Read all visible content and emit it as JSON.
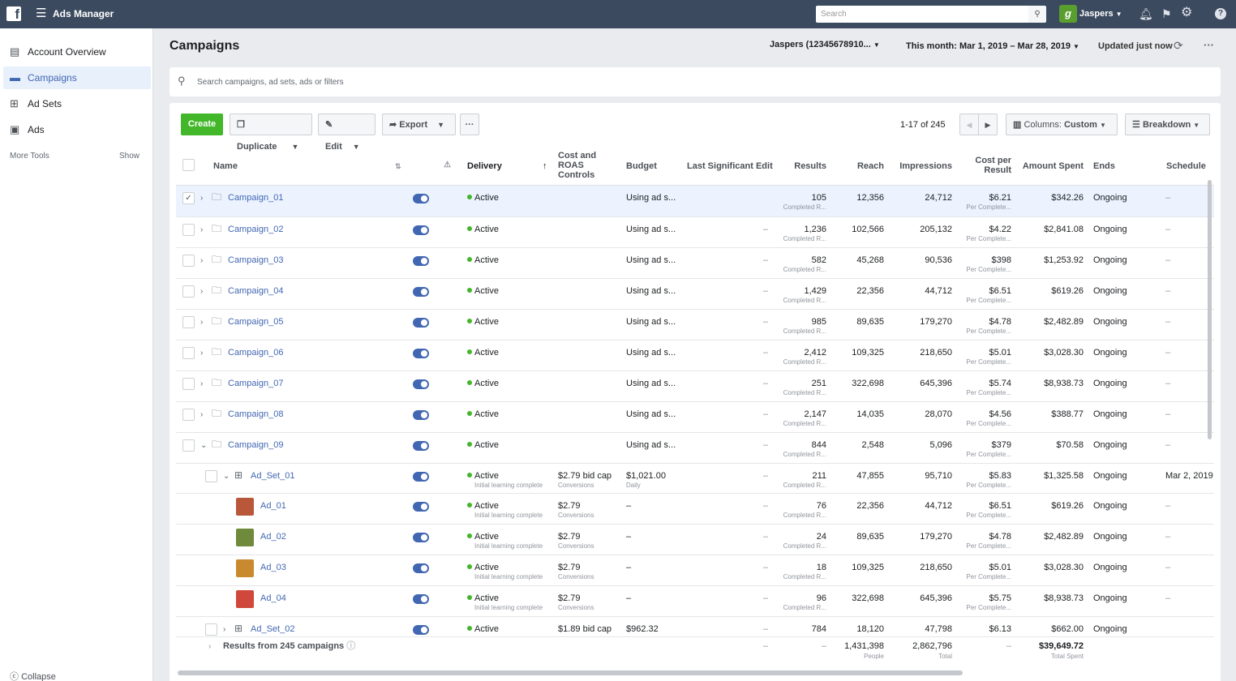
{
  "topbar": {
    "app_name": "Ads Manager",
    "search_placeholder": "Search",
    "user_name": "Jaspers",
    "avatar_letter": "g"
  },
  "sidebar": {
    "items": [
      {
        "label": "Account Overview",
        "icon": "account-overview-icon"
      },
      {
        "label": "Campaigns",
        "icon": "folder-icon",
        "active": true
      },
      {
        "label": "Ad Sets",
        "icon": "grid-icon"
      },
      {
        "label": "Ads",
        "icon": "ad-icon"
      }
    ],
    "more_tools": "More Tools",
    "show": "Show",
    "collapse": "Collapse"
  },
  "header": {
    "title": "Campaigns",
    "account": "Jaspers (12345678910...",
    "date_range": "This month: Mar 1, 2019 – Mar 28, 2019",
    "updated": "Updated just now"
  },
  "filter": {
    "placeholder": "Search campaigns, ad sets, ads or filters"
  },
  "toolbar": {
    "create": "Create",
    "duplicate": "Duplicate",
    "edit": "Edit",
    "export": "Export",
    "more": "···",
    "page_count": "1-17 of 245",
    "columns_label": "Columns:",
    "columns_value": "Custom",
    "breakdown": "Breakdown"
  },
  "table": {
    "headers": {
      "name": "Name",
      "delivery": "Delivery",
      "cost_roas_1": "Cost and",
      "cost_roas_2": "ROAS",
      "cost_roas_3": "Controls",
      "budget": "Budget",
      "last_edit": "Last Significant Edit",
      "results": "Results",
      "reach": "Reach",
      "impressions": "Impressions",
      "cpr_1": "Cost per",
      "cpr_2": "Result",
      "amount": "Amount Spent",
      "ends": "Ends",
      "schedule": "Schedule"
    },
    "rows": [
      {
        "name": "Campaign_01",
        "delivery": "Active",
        "budget": "Using ad s...",
        "last_edit": "",
        "results": "105",
        "results_sub": "Completed R...",
        "reach": "12,356",
        "impressions": "24,712",
        "cpr": "$6.21",
        "cpr_sub": "Per Complete...",
        "amount": "$342.26",
        "ends": "Ongoing",
        "schedule": "–"
      },
      {
        "name": "Campaign_02",
        "delivery": "Active",
        "budget": "Using ad s...",
        "last_edit": "–",
        "results": "1,236",
        "results_sub": "Completed R...",
        "reach": "102,566",
        "impressions": "205,132",
        "cpr": "$4.22",
        "cpr_sub": "Per Complete...",
        "amount": "$2,841.08",
        "ends": "Ongoing",
        "schedule": "–"
      },
      {
        "name": "Campaign_03",
        "delivery": "Active",
        "budget": "Using ad s...",
        "last_edit": "–",
        "results": "582",
        "results_sub": "Completed R...",
        "reach": "45,268",
        "impressions": "90,536",
        "cpr": "$398",
        "cpr_sub": "Per Complete...",
        "amount": "$1,253.92",
        "ends": "Ongoing",
        "schedule": "–"
      },
      {
        "name": "Campaign_04",
        "delivery": "Active",
        "budget": "Using ad s...",
        "last_edit": "–",
        "results": "1,429",
        "results_sub": "Completed R...",
        "reach": "22,356",
        "impressions": "44,712",
        "cpr": "$6.51",
        "cpr_sub": "Per Complete...",
        "amount": "$619.26",
        "ends": "Ongoing",
        "schedule": "–"
      },
      {
        "name": "Campaign_05",
        "delivery": "Active",
        "budget": "Using ad s...",
        "last_edit": "–",
        "results": "985",
        "results_sub": "Completed R...",
        "reach": "89,635",
        "impressions": "179,270",
        "cpr": "$4.78",
        "cpr_sub": "Per Complete...",
        "amount": "$2,482.89",
        "ends": "Ongoing",
        "schedule": "–"
      },
      {
        "name": "Campaign_06",
        "delivery": "Active",
        "budget": "Using ad s...",
        "last_edit": "–",
        "results": "2,412",
        "results_sub": "Completed R...",
        "reach": "109,325",
        "impressions": "218,650",
        "cpr": "$5.01",
        "cpr_sub": "Per Complete...",
        "amount": "$3,028.30",
        "ends": "Ongoing",
        "schedule": "–"
      },
      {
        "name": "Campaign_07",
        "delivery": "Active",
        "budget": "Using ad s...",
        "last_edit": "–",
        "results": "251",
        "results_sub": "Completed R...",
        "reach": "322,698",
        "impressions": "645,396",
        "cpr": "$5.74",
        "cpr_sub": "Per Complete...",
        "amount": "$8,938.73",
        "ends": "Ongoing",
        "schedule": "–"
      },
      {
        "name": "Campaign_08",
        "delivery": "Active",
        "budget": "Using ad s...",
        "last_edit": "–",
        "results": "2,147",
        "results_sub": "Completed R...",
        "reach": "14,035",
        "impressions": "28,070",
        "cpr": "$4.56",
        "cpr_sub": "Per Complete...",
        "amount": "$388.77",
        "ends": "Ongoing",
        "schedule": "–"
      },
      {
        "name": "Campaign_09",
        "delivery": "Active",
        "budget": "Using ad s...",
        "last_edit": "–",
        "results": "844",
        "results_sub": "Completed R...",
        "reach": "2,548",
        "impressions": "5,096",
        "cpr": "$379",
        "cpr_sub": "Per Complete...",
        "amount": "$70.58",
        "ends": "Ongoing",
        "schedule": "–"
      },
      {
        "name": "Ad_Set_01",
        "delivery": "Active",
        "delivery_sub": "Initial learning complete",
        "cost": "$2.79 bid cap",
        "cost_sub": "Conversions",
        "budget": "$1,021.00",
        "budget_sub": "Daily",
        "last_edit": "–",
        "results": "211",
        "results_sub": "Completed R...",
        "reach": "47,855",
        "impressions": "95,710",
        "cpr": "$5.83",
        "cpr_sub": "Per Complete...",
        "amount": "$1,325.58",
        "ends": "Ongoing",
        "schedule": "Mar 2, 2019"
      },
      {
        "name": "Ad_01",
        "delivery": "Active",
        "delivery_sub": "Initial learning complete",
        "cost": "$2.79",
        "cost_sub": "Conversions",
        "budget": "–",
        "last_edit": "–",
        "results": "76",
        "results_sub": "Completed R...",
        "reach": "22,356",
        "impressions": "44,712",
        "cpr": "$6.51",
        "cpr_sub": "Per Complete...",
        "amount": "$619.26",
        "ends": "Ongoing",
        "schedule": "–"
      },
      {
        "name": "Ad_02",
        "delivery": "Active",
        "delivery_sub": "Initial learning complete",
        "cost": "$2.79",
        "cost_sub": "Conversions",
        "budget": "–",
        "last_edit": "–",
        "results": "24",
        "results_sub": "Completed R...",
        "reach": "89,635",
        "impressions": "179,270",
        "cpr": "$4.78",
        "cpr_sub": "Per Complete...",
        "amount": "$2,482.89",
        "ends": "Ongoing",
        "schedule": "–"
      },
      {
        "name": "Ad_03",
        "delivery": "Active",
        "delivery_sub": "Initial learning complete",
        "cost": "$2.79",
        "cost_sub": "Conversions",
        "budget": "–",
        "last_edit": "–",
        "results": "18",
        "results_sub": "Completed R...",
        "reach": "109,325",
        "impressions": "218,650",
        "cpr": "$5.01",
        "cpr_sub": "Per Complete...",
        "amount": "$3,028.30",
        "ends": "Ongoing",
        "schedule": "–"
      },
      {
        "name": "Ad_04",
        "delivery": "Active",
        "delivery_sub": "Initial learning complete",
        "cost": "$2.79",
        "cost_sub": "Conversions",
        "budget": "–",
        "last_edit": "–",
        "results": "96",
        "results_sub": "Completed R...",
        "reach": "322,698",
        "impressions": "645,396",
        "cpr": "$5.75",
        "cpr_sub": "Per Complete...",
        "amount": "$8,938.73",
        "ends": "Ongoing",
        "schedule": "–"
      },
      {
        "name": "Ad_Set_02",
        "delivery": "Active",
        "cost": "$1.89 bid cap",
        "budget": "$962.32",
        "last_edit": "–",
        "results": "784",
        "reach": "18,120",
        "impressions": "47,798",
        "cpr": "$6.13",
        "amount": "$662.00",
        "ends": "Ongoing"
      }
    ],
    "footer": {
      "label": "Results from 245 campaigns",
      "last_edit": "–",
      "results": "–",
      "reach": "1,431,398",
      "reach_sub": "People",
      "impressions": "2,862,796",
      "impressions_sub": "Total",
      "cpr": "–",
      "amount": "$39,649.72",
      "amount_sub": "Total Spent"
    }
  },
  "colors": {
    "topbar": "#3b4a5f",
    "accent": "#4267b2",
    "create_green": "#42b72a",
    "active_dot": "#42b72a",
    "ad_thumbnails": [
      "#b9573a",
      "#6f8a3a",
      "#c98a2f",
      "#d0473b"
    ]
  }
}
